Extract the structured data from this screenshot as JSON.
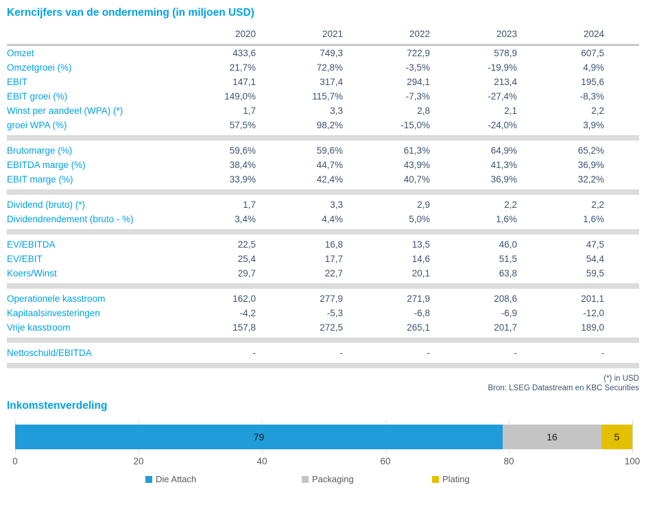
{
  "colors": {
    "accent_cyan": "#00a1e1",
    "value_text": "#3b536f",
    "divider_gray": "#dcdcdc",
    "header_line_gray": "#c8c8c8",
    "axis_text_gray": "#595959"
  },
  "chart_data": [
    {
      "type": "table",
      "title": "Kerncijfers van de onderneming (in miljoen USD)",
      "columns": [
        "2020",
        "2021",
        "2022",
        "2023",
        "2024"
      ],
      "sections": [
        {
          "rows": [
            {
              "label": "Omzet",
              "values": [
                "433,6",
                "749,3",
                "722,9",
                "578,9",
                "607,5"
              ]
            },
            {
              "label": "Omzetgroei (%)",
              "values": [
                "21,7%",
                "72,8%",
                "-3,5%",
                "-19,9%",
                "4,9%"
              ]
            },
            {
              "label": "EBIT",
              "values": [
                "147,1",
                "317,4",
                "294,1",
                "213,4",
                "195,6"
              ]
            },
            {
              "label": "EBIT groei (%)",
              "values": [
                "149,0%",
                "115,7%",
                "-7,3%",
                "-27,4%",
                "-8,3%"
              ]
            },
            {
              "label": "Winst per aandeel (WPA) (*)",
              "values": [
                "1,7",
                "3,3",
                "2,8",
                "2,1",
                "2,2"
              ]
            },
            {
              "label": "groei WPA (%)",
              "values": [
                "57,5%",
                "98,2%",
                "-15,0%",
                "-24,0%",
                "3,9%"
              ]
            }
          ]
        },
        {
          "rows": [
            {
              "label": "Brutomarge (%)",
              "values": [
                "59,6%",
                "59,6%",
                "61,3%",
                "64,9%",
                "65,2%"
              ]
            },
            {
              "label": "EBITDA marge (%)",
              "values": [
                "38,4%",
                "44,7%",
                "43,9%",
                "41,3%",
                "36,9%"
              ]
            },
            {
              "label": "EBIT marge (%)",
              "values": [
                "33,9%",
                "42,4%",
                "40,7%",
                "36,9%",
                "32,2%"
              ]
            }
          ]
        },
        {
          "rows": [
            {
              "label": "Dividend (bruto) (*)",
              "values": [
                "1,7",
                "3,3",
                "2,9",
                "2,2",
                "2,2"
              ]
            },
            {
              "label": "Dividendrendement (bruto - %)",
              "values": [
                "3,4%",
                "4,4%",
                "5,0%",
                "1,6%",
                "1,6%"
              ]
            }
          ]
        },
        {
          "rows": [
            {
              "label": "EV/EBITDA",
              "values": [
                "22,5",
                "16,8",
                "13,5",
                "46,0",
                "47,5"
              ]
            },
            {
              "label": "EV/EBIT",
              "values": [
                "25,4",
                "17,7",
                "14,6",
                "51,5",
                "54,4"
              ]
            },
            {
              "label": "Koers/Winst",
              "values": [
                "29,7",
                "22,7",
                "20,1",
                "63,8",
                "59,5"
              ]
            }
          ]
        },
        {
          "rows": [
            {
              "label": "Operationele kasstroom",
              "values": [
                "162,0",
                "277,9",
                "271,9",
                "208,6",
                "201,1"
              ]
            },
            {
              "label": "Kapitaalsinvesteringen",
              "values": [
                "-4,2",
                "-5,3",
                "-6,8",
                "-6,9",
                "-12,0"
              ]
            },
            {
              "label": "Vrije kasstroom",
              "values": [
                "157,8",
                "272,5",
                "265,1",
                "201,7",
                "189,0"
              ]
            }
          ]
        },
        {
          "rows": [
            {
              "label": "Nettoschuld/EBITDA",
              "values": [
                "-",
                "-",
                "-",
                "-",
                "-"
              ]
            }
          ]
        }
      ],
      "footnote": "(*) in USD",
      "source": "Bron: LSEG Datastream en KBC Securities"
    },
    {
      "type": "bar",
      "orientation": "horizontal",
      "stacked": true,
      "title": "Inkomstenverdeling",
      "series": [
        {
          "name": "Die Attach",
          "value": 79,
          "color": "#1f9cd9"
        },
        {
          "name": "Packaging",
          "value": 16,
          "color": "#c4c4c4"
        },
        {
          "name": "Plating",
          "value": 5,
          "color": "#e3c000"
        }
      ],
      "xlim": [
        0,
        100
      ],
      "xticks": [
        0,
        20,
        40,
        60,
        80,
        100
      ],
      "grid": true,
      "legend_position": "bottom"
    }
  ]
}
